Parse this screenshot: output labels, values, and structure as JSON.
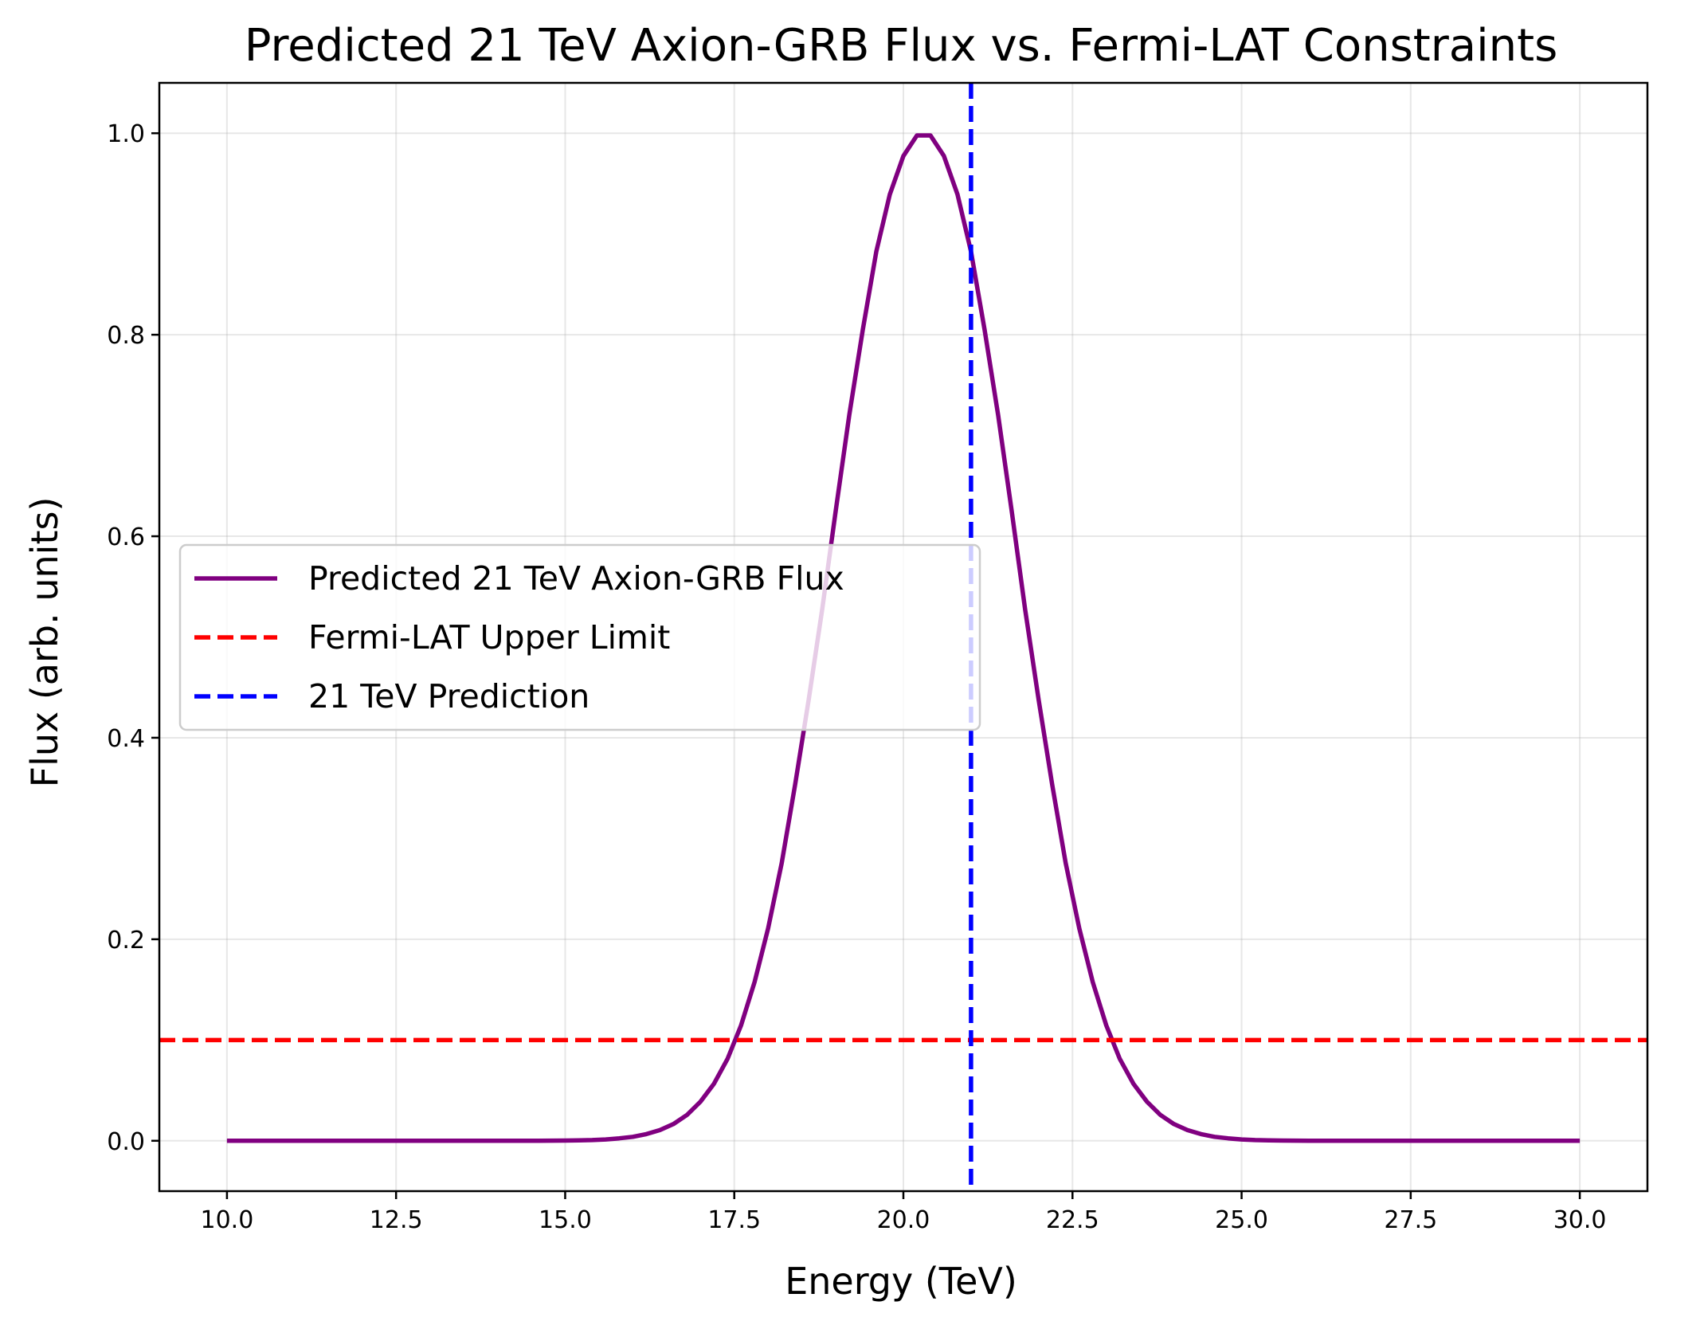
{
  "chart_data": {
    "type": "line",
    "title": "Predicted 21 TeV Axion-GRB Flux vs. Fermi-LAT Constraints",
    "xlabel": "Energy (TeV)",
    "ylabel": "Flux (arb. units)",
    "xlim": [
      9,
      31
    ],
    "ylim": [
      -0.05,
      1.05
    ],
    "xticks": [
      10,
      12.5,
      15,
      17.5,
      20,
      22.5,
      25,
      27.5,
      30
    ],
    "xtick_labels": [
      "10.0",
      "12.5",
      "15.0",
      "17.5",
      "20.0",
      "22.5",
      "25.0",
      "27.5",
      "30.0"
    ],
    "yticks": [
      0,
      0.2,
      0.4,
      0.6,
      0.8,
      1.0
    ],
    "ytick_labels": [
      "0.0",
      "0.2",
      "0.4",
      "0.6",
      "0.8",
      "1.0"
    ],
    "grid": true,
    "legend_position": "center-left",
    "series": [
      {
        "name": "Predicted 21 TeV Axion-GRB Flux",
        "style": "solid",
        "color": "#800080",
        "x": [
          10.0,
          10.2,
          10.4,
          10.6,
          10.8,
          11.0,
          11.2,
          11.4,
          11.6,
          11.8,
          12.0,
          12.2,
          12.4,
          12.6,
          12.8,
          13.0,
          13.2,
          13.4,
          13.6,
          13.8,
          14.0,
          14.2,
          14.4,
          14.6,
          14.8,
          15.0,
          15.2,
          15.4,
          15.6,
          15.8,
          16.0,
          16.2,
          16.4,
          16.6,
          16.8,
          17.0,
          17.2,
          17.4,
          17.6,
          17.8,
          18.0,
          18.2,
          18.4,
          18.6,
          18.8,
          19.0,
          19.2,
          19.4,
          19.6,
          19.8,
          20.0,
          20.2,
          20.4,
          20.6,
          20.8,
          21.0,
          21.2,
          21.4,
          21.6,
          21.8,
          22.0,
          22.2,
          22.4,
          22.6,
          22.8,
          23.0,
          23.2,
          23.4,
          23.6,
          23.8,
          24.0,
          24.2,
          24.4,
          24.6,
          24.8,
          25.0,
          25.2,
          25.4,
          25.6,
          25.8,
          26.0,
          26.2,
          26.4,
          26.6,
          26.8,
          27.0,
          27.2,
          27.4,
          27.6,
          27.8,
          28.0,
          28.2,
          28.4,
          28.6,
          28.8,
          29.0,
          29.2,
          29.4,
          29.6,
          29.8,
          30.0
        ],
        "y": [
          0.0,
          0.0,
          0.0,
          0.0,
          0.0,
          0.0,
          0.0,
          0.0,
          0.0,
          0.0,
          0.0,
          0.0,
          0.0,
          0.0,
          0.0,
          0.0,
          0.0,
          0.0,
          0.0,
          0.0,
          0.0,
          0.0,
          0.0,
          0.0,
          0.0001,
          0.0002,
          0.0004,
          0.0007,
          0.0013,
          0.0024,
          0.0039,
          0.0066,
          0.0106,
          0.0166,
          0.0256,
          0.0388,
          0.0567,
          0.0812,
          0.1145,
          0.1575,
          0.2108,
          0.2753,
          0.3535,
          0.4376,
          0.5275,
          0.6254,
          0.7205,
          0.8052,
          0.8825,
          0.9394,
          0.9774,
          0.9978,
          0.9978,
          0.9774,
          0.9394,
          0.8825,
          0.8052,
          0.7205,
          0.6254,
          0.5275,
          0.4376,
          0.3535,
          0.2753,
          0.2108,
          0.1575,
          0.1145,
          0.0812,
          0.0567,
          0.0388,
          0.0256,
          0.0166,
          0.0106,
          0.0066,
          0.0039,
          0.0024,
          0.0013,
          0.0007,
          0.0004,
          0.0002,
          0.0001,
          0.0,
          0.0,
          0.0,
          0.0,
          0.0,
          0.0,
          0.0,
          0.0,
          0.0,
          0.0,
          0.0,
          0.0,
          0.0,
          0.0,
          0.0,
          0.0,
          0.0,
          0.0,
          0.0,
          0.0,
          0.0
        ]
      },
      {
        "name": "Fermi-LAT Upper Limit",
        "style": "dashed",
        "color": "#ff0000",
        "orientation": "horizontal",
        "value": 0.1
      },
      {
        "name": "21 TeV Prediction",
        "style": "dashed",
        "color": "#0000ff",
        "orientation": "vertical",
        "value": 21
      }
    ]
  }
}
